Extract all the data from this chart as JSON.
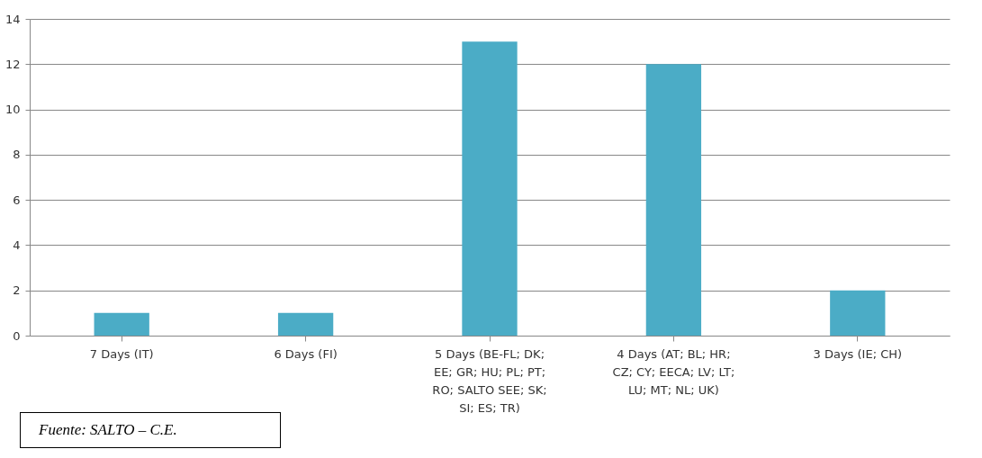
{
  "chart_data": {
    "type": "bar",
    "categories": [
      "7 Days (IT)",
      "6 Days (FI)",
      "5 Days (BE-FL; DK; EE; GR; HU; PL; PT; RO; SALTO SEE; SK; SI; ES; TR)",
      "4 Days (AT; BL; HR; CZ; CY; EECA; LV; LT; LU; MT; NL; UK)",
      "3 Days (IE; CH)"
    ],
    "values": [
      1,
      1,
      13,
      12,
      2
    ],
    "color": "#4bacc6",
    "ylim": [
      0,
      14
    ],
    "yticks": [
      0,
      2,
      4,
      6,
      8,
      10,
      12,
      14
    ],
    "grid": "y",
    "annotations": [
      "Fuente: SALTO – C.E."
    ]
  }
}
